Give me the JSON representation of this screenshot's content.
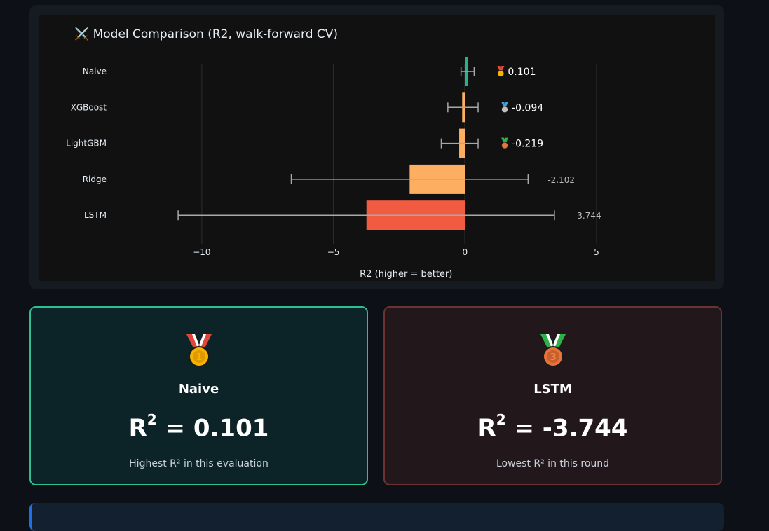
{
  "chart_data": {
    "type": "bar",
    "orientation": "horizontal",
    "title": "Model Comparison (R2, walk-forward CV)",
    "title_icon": "crossed-swords-icon",
    "xlabel": "R2 (higher = better)",
    "ylabel": "",
    "xlim": [
      -13.3,
      6.2
    ],
    "xticks": [
      -10,
      -5,
      0,
      5
    ],
    "xtick_labels": [
      "−10",
      "−5",
      "0",
      "5"
    ],
    "grid": true,
    "legend": "none",
    "categories": [
      "Naive",
      "XGBoost",
      "LightGBM",
      "Ridge",
      "LSTM"
    ],
    "values": [
      0.101,
      -0.094,
      -0.219,
      -2.102,
      -3.744
    ],
    "error_low": [
      -0.15,
      -0.65,
      -0.9,
      -6.6,
      -10.9
    ],
    "error_high": [
      0.35,
      0.5,
      0.5,
      2.4,
      3.4
    ],
    "bar_colors": [
      "#26b38a",
      "#fdae61",
      "#fdae61",
      "#fdae61",
      "#f05b42"
    ],
    "value_labels": [
      "0.101",
      "-0.094",
      "-0.219",
      "-2.102",
      "-3.744"
    ],
    "label_medals": [
      "gold",
      "silver",
      "bronze",
      "",
      ""
    ]
  },
  "best_card": {
    "medal": "gold-medal-icon",
    "model": "Naive",
    "value_label": "= 0.101",
    "caption": "Highest R² in this evaluation"
  },
  "worst_card": {
    "medal": "bronze-medal-icon",
    "model": "LSTM",
    "value_label": "= -3.744",
    "caption": "Lowest R² in this round"
  },
  "r_symbol": "R",
  "r_sup": "2",
  "colors": {
    "page_bg": "#0d1117",
    "best_accent": "#2ebf91",
    "worst_accent": "#6b3331"
  }
}
